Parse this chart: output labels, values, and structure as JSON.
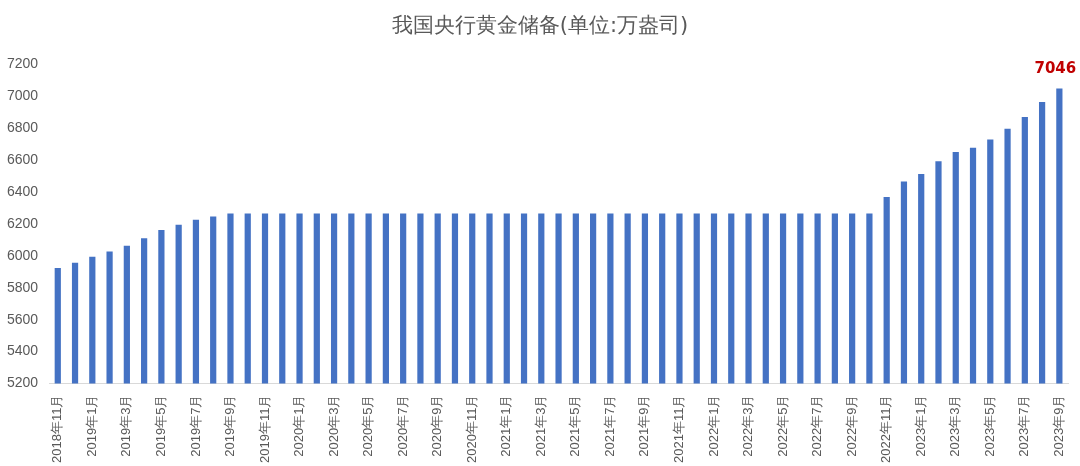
{
  "chart_data": {
    "type": "bar",
    "title": "我国央行黄金储备(单位:万盎司)",
    "categories": [
      "2018年11月",
      null,
      "2019年1月",
      null,
      "2019年3月",
      null,
      "2019年5月",
      null,
      "2019年7月",
      null,
      "2019年9月",
      null,
      "2019年11月",
      null,
      "2020年1月",
      null,
      "2020年3月",
      null,
      "2020年5月",
      null,
      "2020年7月",
      null,
      "2020年9月",
      null,
      "2020年11月",
      null,
      "2021年1月",
      null,
      "2021年3月",
      null,
      "2021年5月",
      null,
      "2021年7月",
      null,
      "2021年9月",
      null,
      "2021年11月",
      null,
      "2022年1月",
      null,
      "2022年3月",
      null,
      "2022年5月",
      null,
      "2022年7月",
      null,
      "2022年9月",
      null,
      "2022年11月",
      null,
      "2023年1月",
      null,
      "2023年3月",
      null,
      "2023年5月",
      null,
      "2023年7月",
      null,
      "2023年9月"
    ],
    "values": [
      5924,
      5956,
      5994,
      6026,
      6062,
      6110,
      6161,
      6194,
      6225,
      6245,
      6264,
      6264,
      6264,
      6264,
      6264,
      6264,
      6264,
      6264,
      6264,
      6264,
      6264,
      6264,
      6264,
      6264,
      6264,
      6264,
      6264,
      6264,
      6264,
      6264,
      6264,
      6264,
      6264,
      6264,
      6264,
      6264,
      6264,
      6264,
      6264,
      6264,
      6264,
      6264,
      6264,
      6264,
      6264,
      6264,
      6264,
      6264,
      6367,
      6464,
      6512,
      6592,
      6650,
      6676,
      6727,
      6795,
      6869,
      6962,
      7046
    ],
    "value_labels": [
      null,
      null,
      null,
      null,
      null,
      null,
      null,
      null,
      null,
      null,
      null,
      null,
      null,
      null,
      null,
      null,
      null,
      null,
      null,
      null,
      null,
      null,
      null,
      null,
      null,
      null,
      null,
      null,
      null,
      null,
      null,
      null,
      null,
      null,
      null,
      null,
      null,
      null,
      null,
      null,
      null,
      null,
      null,
      null,
      null,
      null,
      null,
      null,
      null,
      null,
      null,
      null,
      null,
      null,
      null,
      null,
      null,
      null,
      "7046"
    ],
    "color": "#4472c4",
    "ylim": [
      5200,
      7200
    ],
    "yticks": [
      5200,
      5400,
      5600,
      5800,
      6000,
      6200,
      6400,
      6600,
      6800,
      7000,
      7200
    ],
    "grid": false,
    "legend": false
  }
}
